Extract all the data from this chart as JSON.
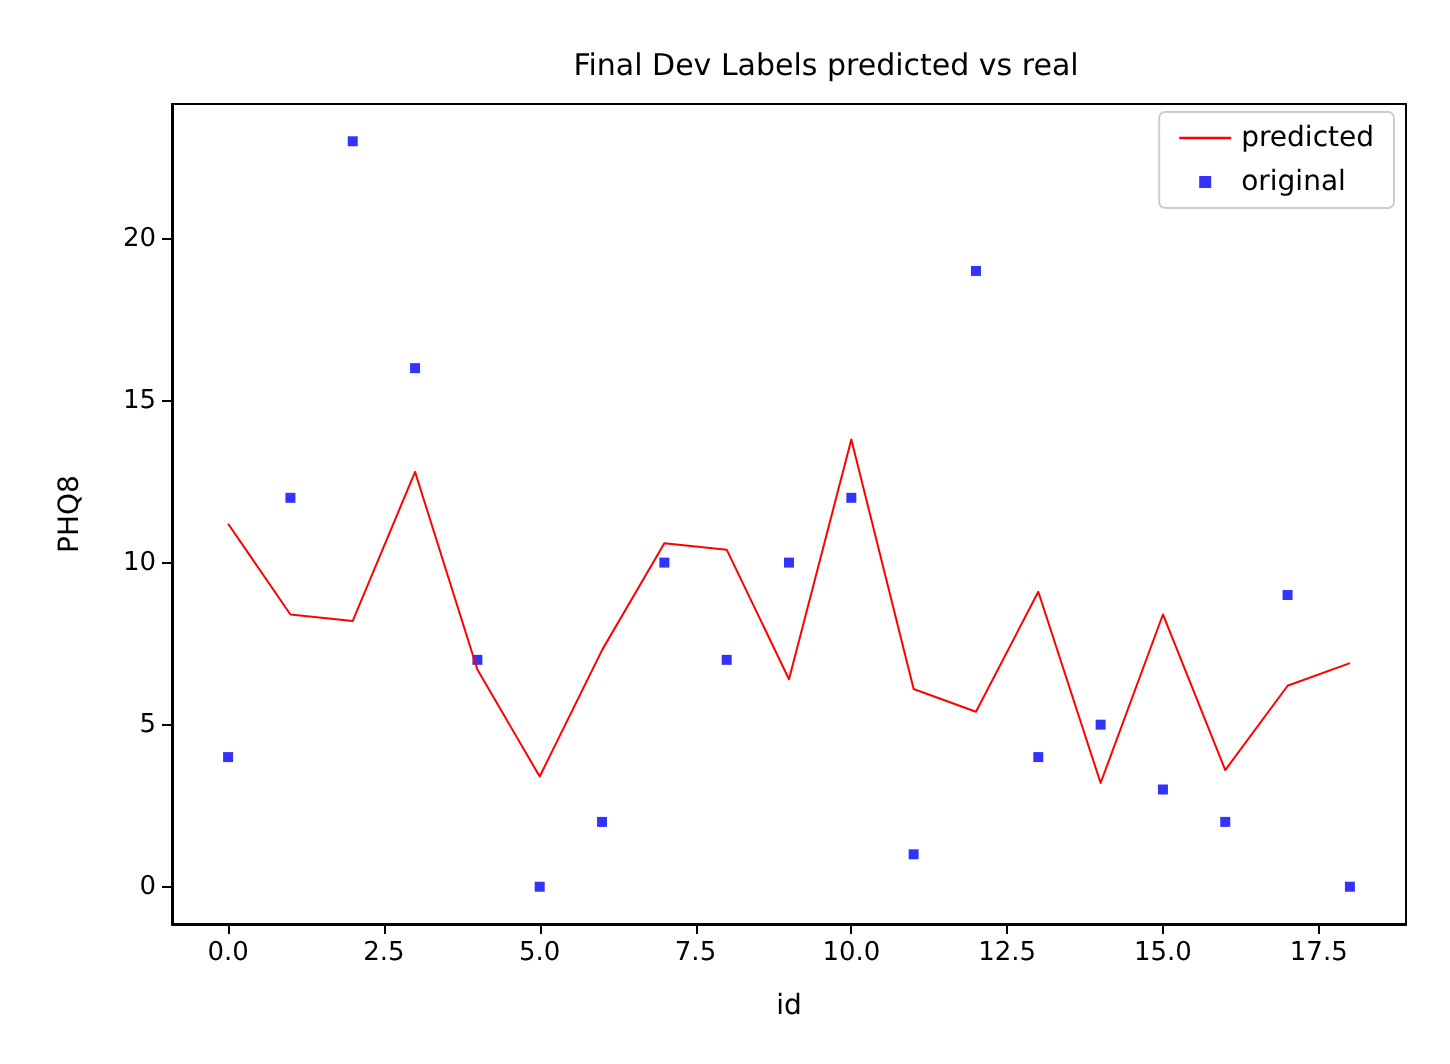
{
  "chart_data": {
    "type": "line",
    "title": "Final Dev Labels predicted vs real",
    "xlabel": "id",
    "ylabel": "PHQ8",
    "x": [
      0,
      1,
      2,
      3,
      4,
      5,
      6,
      7,
      8,
      9,
      10,
      11,
      12,
      13,
      14,
      15,
      16,
      17,
      18
    ],
    "xlim": [
      -0.9,
      18.9
    ],
    "xticks": [
      {
        "value": 0,
        "label": "0.0"
      },
      {
        "value": 2.5,
        "label": "2.5"
      },
      {
        "value": 5,
        "label": "5.0"
      },
      {
        "value": 7.5,
        "label": "7.5"
      },
      {
        "value": 10,
        "label": "10.0"
      },
      {
        "value": 12.5,
        "label": "12.5"
      },
      {
        "value": 15,
        "label": "15.0"
      },
      {
        "value": 17.5,
        "label": "17.5"
      }
    ],
    "ylim": [
      -1.15,
      24.15
    ],
    "yticks": [
      0,
      5,
      10,
      15,
      20
    ],
    "grid": false,
    "legend": "top right",
    "series": [
      {
        "name": "predicted",
        "type": "line",
        "color": "#ff0000",
        "values": [
          11.2,
          8.4,
          8.2,
          12.8,
          6.7,
          3.4,
          7.3,
          10.6,
          10.4,
          6.4,
          13.8,
          6.1,
          5.4,
          9.1,
          3.2,
          8.4,
          3.6,
          6.2,
          6.9
        ]
      },
      {
        "name": "original",
        "type": "scatter",
        "marker": "square",
        "color": "#0000ff",
        "values": [
          4,
          12,
          23,
          16,
          7,
          0,
          2,
          10,
          7,
          10,
          12,
          1,
          19,
          4,
          5,
          3,
          2,
          9,
          0
        ]
      }
    ]
  }
}
